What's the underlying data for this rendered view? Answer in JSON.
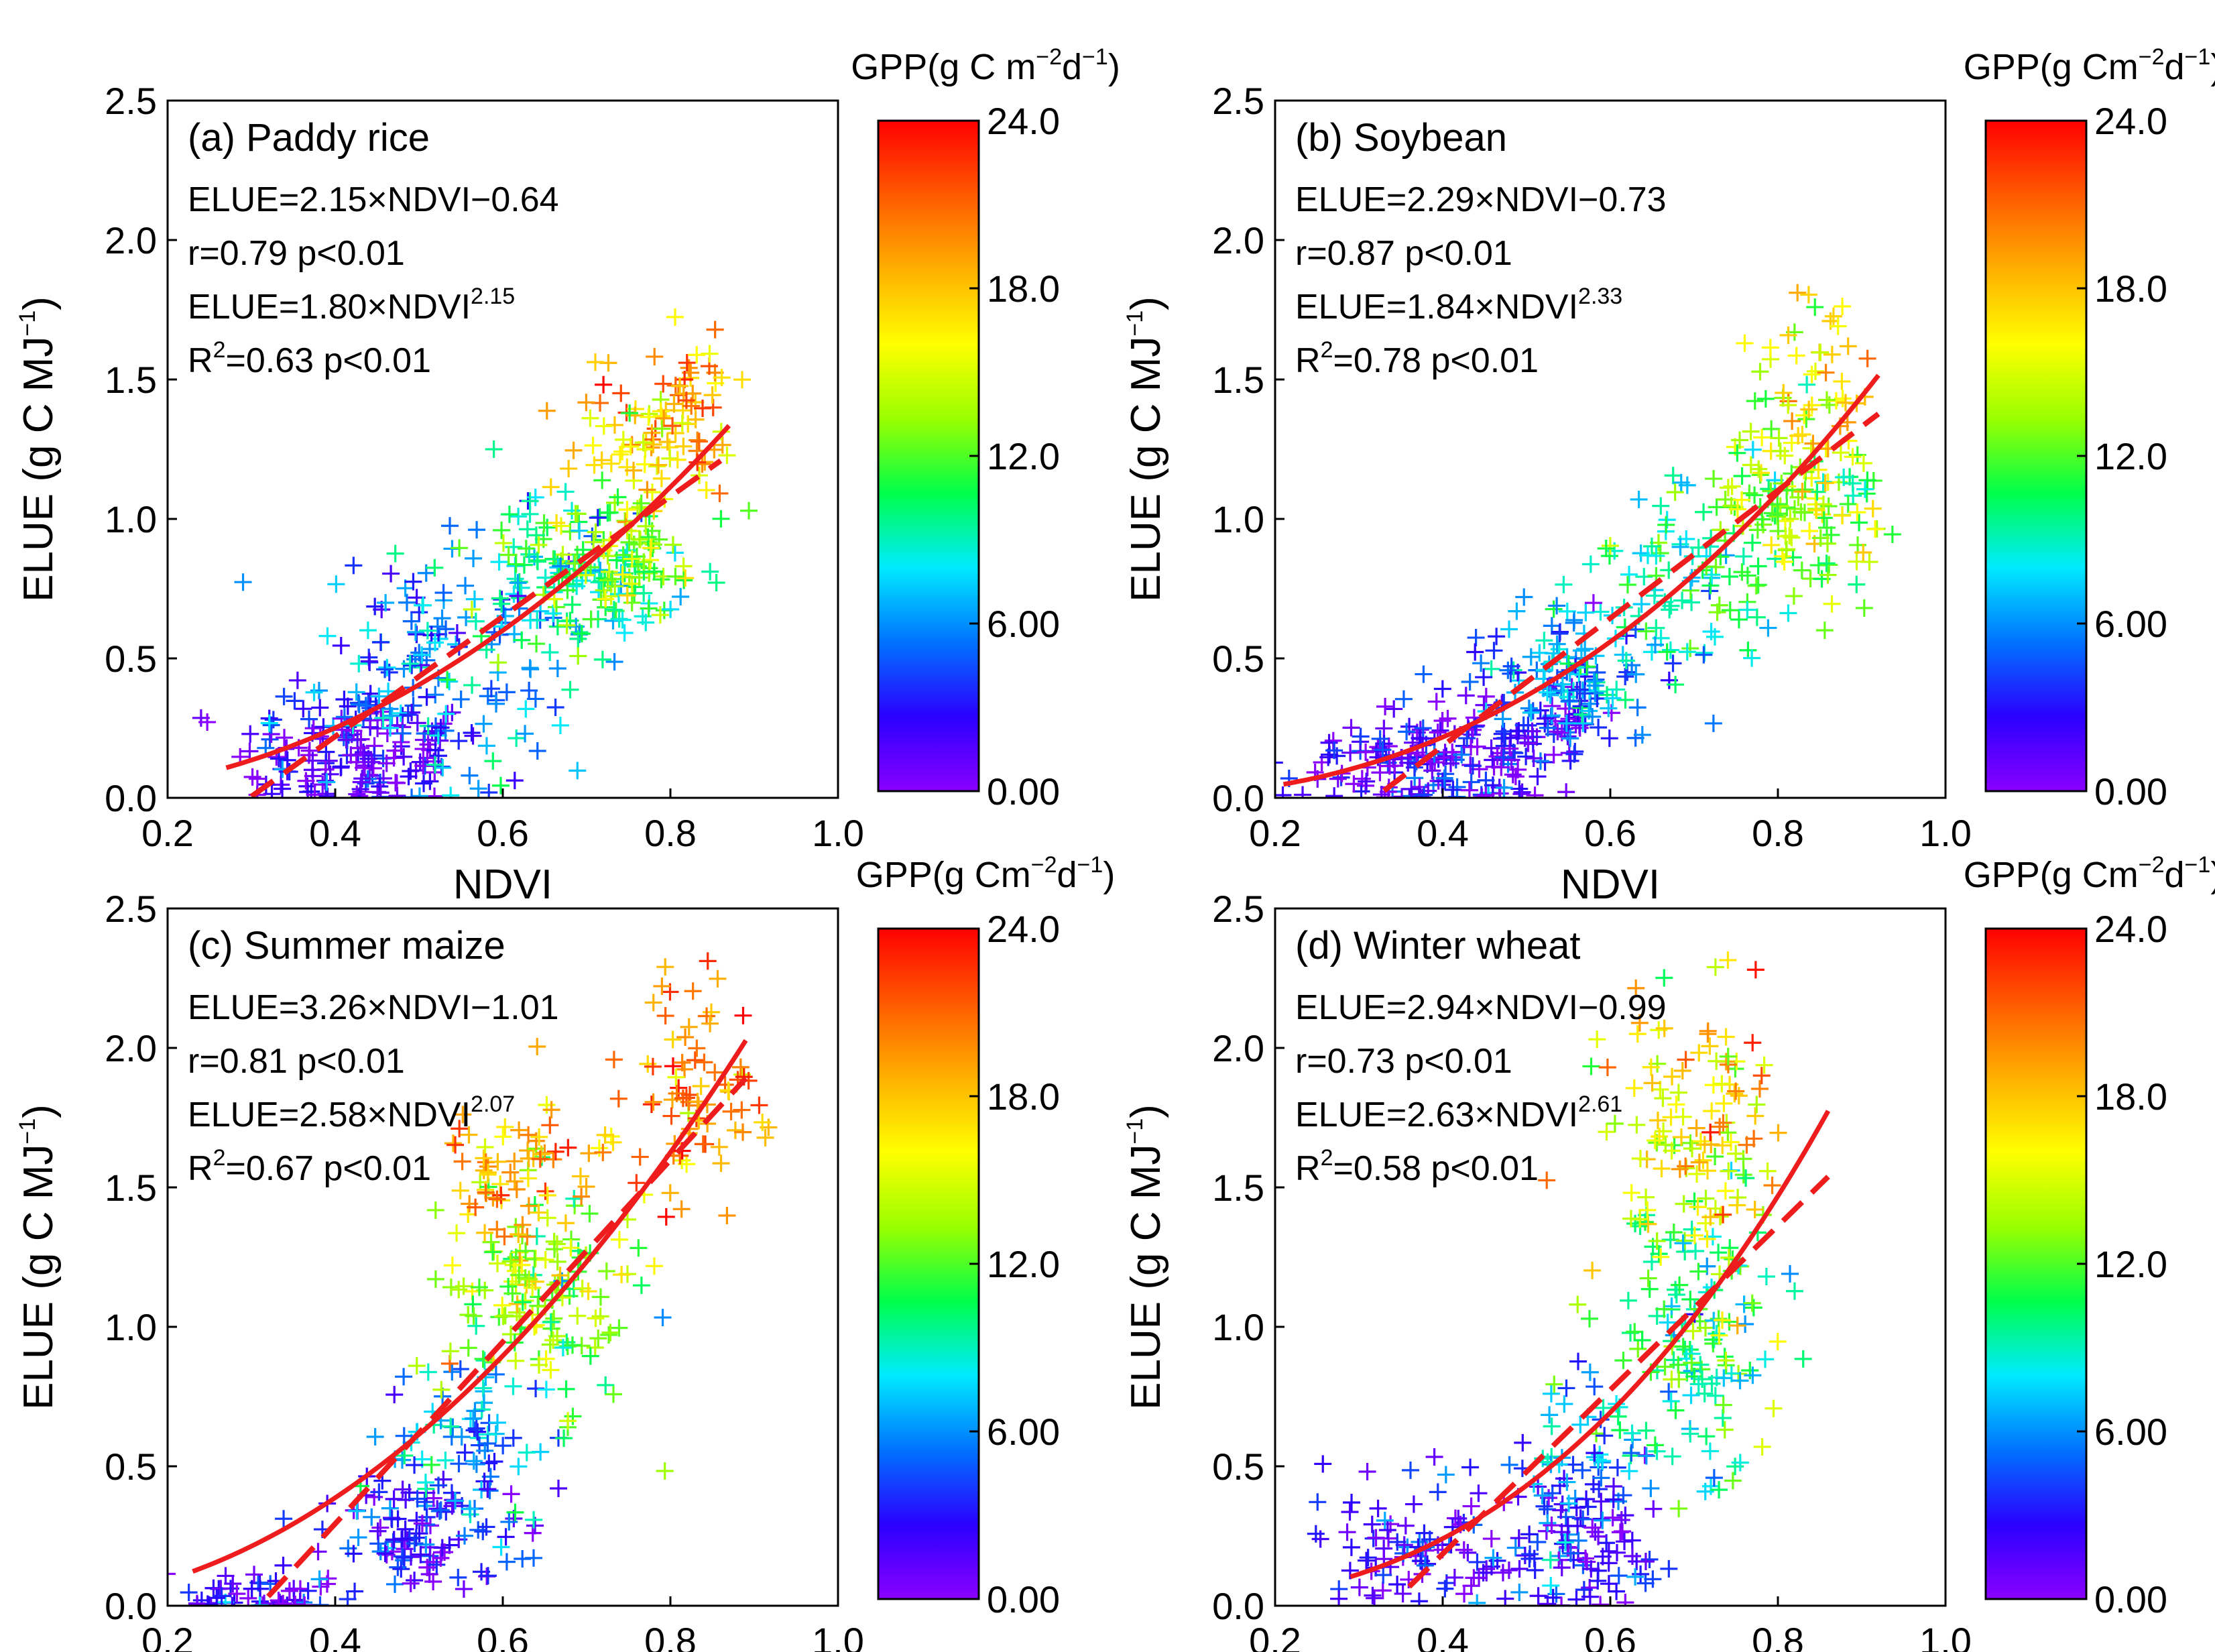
{
  "colorbar": {
    "min": 0,
    "max": 24,
    "ticks": [
      "0.00",
      "6.00",
      "12.0",
      "18.0",
      "24.0"
    ],
    "tick_values": [
      0,
      6,
      12,
      18,
      24
    ],
    "stops": [
      "#8a00ff",
      "#2a00ff",
      "#0072ff",
      "#00eaff",
      "#00ff4a",
      "#9aff00",
      "#ffff00",
      "#ffb000",
      "#ff5a00",
      "#ff0000"
    ]
  },
  "axes": {
    "xlabel": "NDVI",
    "ylabel": "ELUE (g C MJ",
    "ylabel_sup": "−1",
    "ylabel_end": ")",
    "xticks": [
      "0.2",
      "0.4",
      "0.6",
      "0.8",
      "1.0"
    ],
    "xtick_values": [
      0.2,
      0.4,
      0.6,
      0.8,
      1.0
    ],
    "yticks": [
      "0.0",
      "0.5",
      "1.0",
      "1.5",
      "2.0",
      "2.5"
    ],
    "ytick_values": [
      0.0,
      0.5,
      1.0,
      1.5,
      2.0,
      2.5
    ],
    "xlim": [
      0.2,
      1.0
    ],
    "ylim": [
      0.0,
      2.5
    ]
  },
  "chart_data": [
    {
      "type": "scatter",
      "panel": "(a)",
      "title": "(a)  Paddy rice",
      "colorbar_label": "GPP(g C m",
      "colorbar_sup": "−2",
      "colorbar_mid": "d",
      "colorbar_sup2": "−1",
      "colorbar_end": ")",
      "eq_linear": "ELUE=2.15×NDVI−0.64",
      "stat_linear": "r=0.79   p<0.01",
      "eq_power": "ELUE=1.80×NDVI",
      "eq_power_exp": "2.15",
      "stat_power_pre": "R",
      "stat_power_sup": "2",
      "stat_power_post": "=0.63    p<0.01",
      "linear_fit": {
        "slope": 2.15,
        "intercept": -0.64,
        "x_range": [
          0.3,
          0.86
        ]
      },
      "power_fit": {
        "a": 1.8,
        "b": 2.15,
        "x_range": [
          0.27,
          0.87
        ]
      },
      "clusters": [
        {
          "x": 0.42,
          "y": 0.15,
          "sx": 0.07,
          "sy": 0.12,
          "g": 1.5,
          "n": 150
        },
        {
          "x": 0.52,
          "y": 0.45,
          "sx": 0.08,
          "sy": 0.22,
          "g": 5.5,
          "n": 160
        },
        {
          "x": 0.68,
          "y": 0.8,
          "sx": 0.06,
          "sy": 0.15,
          "g": 10.0,
          "n": 150
        },
        {
          "x": 0.76,
          "y": 0.85,
          "sx": 0.04,
          "sy": 0.12,
          "g": 13.0,
          "n": 60
        },
        {
          "x": 0.78,
          "y": 1.25,
          "sx": 0.05,
          "sy": 0.14,
          "g": 17.0,
          "n": 80
        },
        {
          "x": 0.83,
          "y": 1.5,
          "sx": 0.03,
          "sy": 0.13,
          "g": 19.5,
          "n": 30
        }
      ]
    },
    {
      "type": "scatter",
      "panel": "(b)",
      "title": "(b) Soybean",
      "colorbar_label": "GPP(g Cm",
      "colorbar_sup": "−2",
      "colorbar_mid": "d",
      "colorbar_sup2": "−1",
      "colorbar_end": ")",
      "eq_linear": "ELUE=2.29×NDVI−0.73",
      "stat_linear": "r=0.87     p<0.01",
      "eq_power": "ELUE=1.84×NDVI",
      "eq_power_exp": "2.33",
      "stat_power_pre": "R",
      "stat_power_sup": "2",
      "stat_power_post": "=0.78   p<0.01",
      "linear_fit": {
        "slope": 2.29,
        "intercept": -0.73,
        "x_range": [
          0.33,
          0.92
        ]
      },
      "power_fit": {
        "a": 1.84,
        "b": 2.33,
        "x_range": [
          0.21,
          0.92
        ]
      },
      "clusters": [
        {
          "x": 0.38,
          "y": 0.12,
          "sx": 0.08,
          "sy": 0.1,
          "g": 2.0,
          "n": 150
        },
        {
          "x": 0.5,
          "y": 0.25,
          "sx": 0.06,
          "sy": 0.12,
          "g": 3.0,
          "n": 90
        },
        {
          "x": 0.55,
          "y": 0.45,
          "sx": 0.05,
          "sy": 0.12,
          "g": 6.0,
          "n": 110
        },
        {
          "x": 0.68,
          "y": 0.8,
          "sx": 0.06,
          "sy": 0.18,
          "g": 9.5,
          "n": 100
        },
        {
          "x": 0.83,
          "y": 1.05,
          "sx": 0.05,
          "sy": 0.15,
          "g": 13.0,
          "n": 130
        },
        {
          "x": 0.84,
          "y": 1.5,
          "sx": 0.04,
          "sy": 0.2,
          "g": 17.0,
          "n": 50
        }
      ]
    },
    {
      "type": "scatter",
      "panel": "(c)",
      "title": "(c)  Summer maize",
      "colorbar_label": "GPP(g Cm",
      "colorbar_sup": "−2",
      "colorbar_mid": "d",
      "colorbar_sup2": "−1",
      "colorbar_end": ")",
      "eq_linear": "ELUE=3.26×NDVI−1.01",
      "stat_linear": "r=0.81     p<0.01",
      "eq_power": "ELUE=2.58×NDVI",
      "eq_power_exp": "2.07",
      "stat_power_pre": "R",
      "stat_power_sup": "2",
      "stat_power_post": "=0.67   p<0.01",
      "linear_fit": {
        "slope": 3.26,
        "intercept": -1.01,
        "x_range": [
          0.32,
          0.89
        ]
      },
      "power_fit": {
        "a": 2.58,
        "b": 2.07,
        "x_range": [
          0.23,
          0.89
        ]
      },
      "clusters": [
        {
          "x": 0.3,
          "y": 0.04,
          "sx": 0.05,
          "sy": 0.04,
          "g": 1.5,
          "n": 50
        },
        {
          "x": 0.5,
          "y": 0.25,
          "sx": 0.07,
          "sy": 0.12,
          "g": 2.5,
          "n": 110
        },
        {
          "x": 0.56,
          "y": 0.6,
          "sx": 0.05,
          "sy": 0.15,
          "g": 6.5,
          "n": 80
        },
        {
          "x": 0.65,
          "y": 1.1,
          "sx": 0.06,
          "sy": 0.2,
          "g": 13.0,
          "n": 150
        },
        {
          "x": 0.62,
          "y": 1.55,
          "sx": 0.05,
          "sy": 0.15,
          "g": 18.5,
          "n": 70
        },
        {
          "x": 0.83,
          "y": 1.8,
          "sx": 0.05,
          "sy": 0.2,
          "g": 20.0,
          "n": 80
        }
      ]
    },
    {
      "type": "scatter",
      "panel": "(d)",
      "title": "(d)  Winter wheat",
      "colorbar_label": "GPP(g Cm",
      "colorbar_sup": "−2",
      "colorbar_mid": "d",
      "colorbar_sup2": "−1",
      "colorbar_end": ")",
      "eq_linear": "ELUE=2.94×NDVI−0.99",
      "stat_linear": "r=0.73       p<0.01",
      "eq_power": "ELUE=2.63×NDVI",
      "eq_power_exp": "2.61",
      "stat_power_pre": "R",
      "stat_power_sup": "2",
      "stat_power_post": "=0.58     p<0.01",
      "linear_fit": {
        "slope": 2.94,
        "intercept": -0.99,
        "x_range": [
          0.36,
          0.86
        ]
      },
      "power_fit": {
        "a": 2.63,
        "b": 2.61,
        "x_range": [
          0.29,
          0.86
        ]
      },
      "clusters": [
        {
          "x": 0.38,
          "y": 0.2,
          "sx": 0.06,
          "sy": 0.13,
          "g": 2.0,
          "n": 90
        },
        {
          "x": 0.55,
          "y": 0.2,
          "sx": 0.05,
          "sy": 0.12,
          "g": 2.5,
          "n": 100
        },
        {
          "x": 0.58,
          "y": 0.55,
          "sx": 0.05,
          "sy": 0.18,
          "g": 6.0,
          "n": 60
        },
        {
          "x": 0.7,
          "y": 1.0,
          "sx": 0.05,
          "sy": 0.22,
          "g": 10.0,
          "n": 130
        },
        {
          "x": 0.7,
          "y": 1.6,
          "sx": 0.05,
          "sy": 0.25,
          "g": 15.0,
          "n": 90
        },
        {
          "x": 0.72,
          "y": 1.8,
          "sx": 0.05,
          "sy": 0.25,
          "g": 19.5,
          "n": 40
        }
      ]
    }
  ]
}
